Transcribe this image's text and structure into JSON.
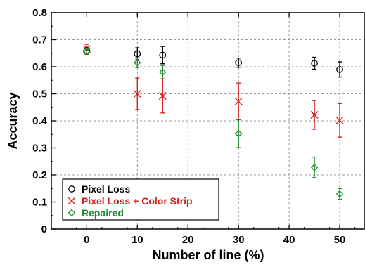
{
  "chart_data": {
    "type": "scatter",
    "title": "",
    "xlabel": "Number of line (%)",
    "ylabel": "Accuracy",
    "xlim": [
      -7,
      55
    ],
    "ylim": [
      0,
      0.8
    ],
    "xticks": [
      0,
      10,
      20,
      30,
      40,
      50
    ],
    "yticks": [
      0,
      0.1,
      0.2,
      0.3,
      0.4,
      0.5,
      0.6,
      0.7,
      0.8
    ],
    "xtick_labels": [
      "0",
      "10",
      "20",
      "30",
      "40",
      "50"
    ],
    "ytick_labels": [
      "0",
      "0.1",
      "0.2",
      "0.3",
      "0.4",
      "0.5",
      "0.6",
      "0.7",
      "0.8"
    ],
    "grid": true,
    "grid_style": "dashed",
    "legend_position": "bottom-left",
    "series": [
      {
        "name": "Pixel Loss",
        "marker": "circle",
        "color": "#000000",
        "x": [
          0,
          10,
          15,
          30,
          45,
          50
        ],
        "y": [
          0.66,
          0.648,
          0.643,
          0.615,
          0.613,
          0.59
        ],
        "err": [
          0.012,
          0.022,
          0.032,
          0.017,
          0.022,
          0.028
        ]
      },
      {
        "name": "Pixel Loss + Color Strip",
        "marker": "x",
        "color": "#d42020",
        "x": [
          0,
          10,
          15,
          30,
          45,
          50
        ],
        "y": [
          0.665,
          0.5,
          0.492,
          0.472,
          0.422,
          0.402
        ],
        "err": [
          0.018,
          0.058,
          0.063,
          0.068,
          0.053,
          0.062
        ]
      },
      {
        "name": "Repaired",
        "marker": "diamond",
        "color": "#1e8c2e",
        "x": [
          0,
          10,
          15,
          30,
          45,
          50
        ],
        "y": [
          0.656,
          0.615,
          0.58,
          0.353,
          0.228,
          0.13
        ],
        "err": [
          0.01,
          0.018,
          0.025,
          0.052,
          0.038,
          0.02
        ]
      }
    ]
  }
}
